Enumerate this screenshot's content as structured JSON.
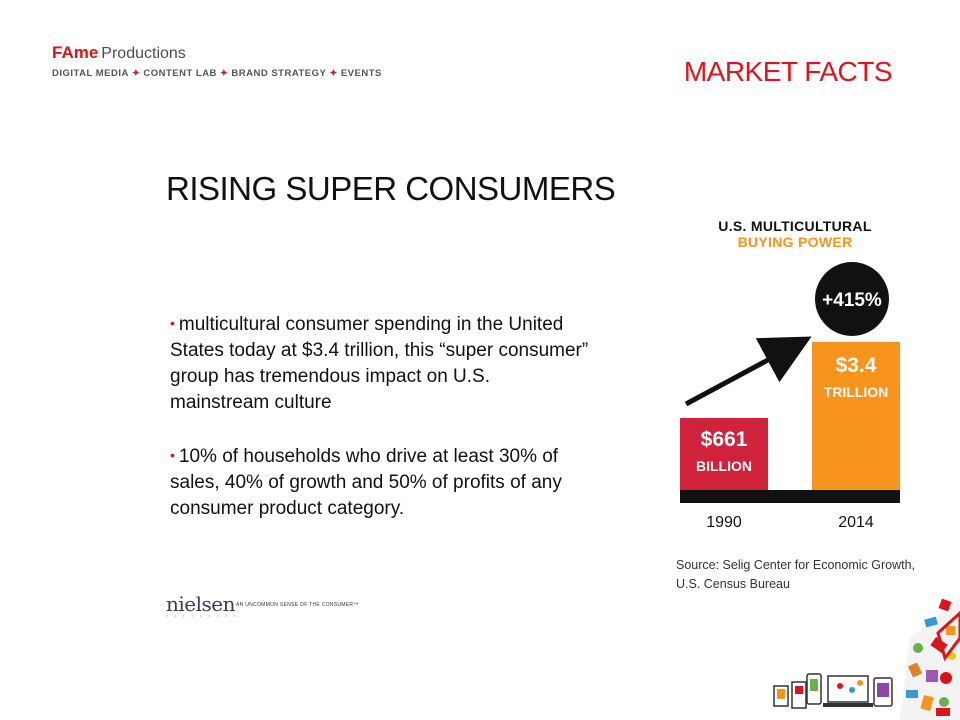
{
  "header": {
    "logo_brand": "FAme",
    "logo_suffix": "Productions",
    "services": [
      "DIGITAL MEDIA",
      "CONTENT LAB",
      "BRAND STRATEGY",
      "EVENTS"
    ],
    "section_title": "MARKET FACTS"
  },
  "slide": {
    "title": "RISING SUPER CONSUMERS",
    "bullets": [
      "multicultural consumer spending in the United States today at $3.4 trillion, this “super consumer” group has tremendous impact on U.S. mainstream culture",
      "10% of households who drive at least 30% of sales, 40% of growth and 50% of profits of any consumer product category."
    ]
  },
  "nielsen": {
    "wordmark": "nielsen",
    "tagline": "AN UNCOMMON SENSE OF THE CONSUMER™"
  },
  "infographic": {
    "title_line1": "U.S. MULTICULTURAL",
    "title_line2": "BUYING POWER",
    "badge": "+415%",
    "source": "Source: Selig Center for Economic Growth,",
    "source2": "U.S. Census Bureau"
  },
  "chart_data": {
    "type": "bar",
    "categories": [
      "1990",
      "2014"
    ],
    "values": [
      0.661,
      3.4
    ],
    "units": "trillion USD",
    "data_labels": [
      [
        "$661",
        "BILLION"
      ],
      [
        "$3.4",
        "TRILLION"
      ]
    ],
    "bar_colors": [
      "#d0223a",
      "#f7941d"
    ],
    "growth_label": "+415%",
    "title": "U.S. MULTICULTURAL BUYING POWER",
    "grid": false
  },
  "colors": {
    "brand_red": "#e1141c",
    "accent_orange": "#f7941d",
    "bar_red": "#d0223a"
  }
}
